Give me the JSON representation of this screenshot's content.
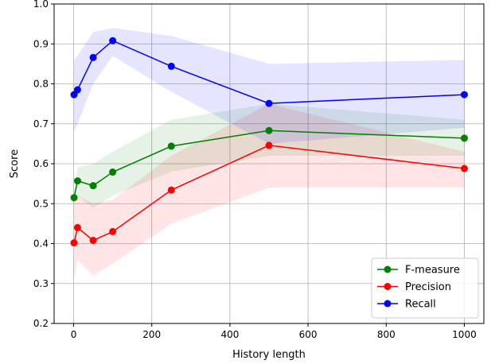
{
  "chart_data": {
    "type": "line",
    "title": "",
    "xlabel": "History length",
    "ylabel": "Score",
    "xlim": [
      -50,
      1050
    ],
    "ylim": [
      0.2,
      1.0
    ],
    "xticks": [
      0,
      200,
      400,
      600,
      800,
      1000
    ],
    "yticks": [
      0.2,
      0.3,
      0.4,
      0.5,
      0.6,
      0.7,
      0.8,
      0.9,
      1.0
    ],
    "grid": true,
    "legend_position": "bottom-right",
    "x": [
      1,
      10,
      50,
      100,
      250,
      500,
      1000
    ],
    "series": [
      {
        "name": "F-measure",
        "color": "#008000",
        "values": [
          0.515,
          0.557,
          0.545,
          0.579,
          0.644,
          0.683,
          0.664
        ],
        "band_low": [
          0.5,
          0.52,
          0.49,
          0.52,
          0.58,
          0.62,
          0.62
        ],
        "band_high": [
          0.53,
          0.59,
          0.6,
          0.63,
          0.71,
          0.75,
          0.71
        ]
      },
      {
        "name": "Precision",
        "color": "#ff0000",
        "values": [
          0.402,
          0.44,
          0.408,
          0.43,
          0.534,
          0.646,
          0.588
        ],
        "band_low": [
          0.31,
          0.36,
          0.32,
          0.35,
          0.45,
          0.54,
          0.54
        ],
        "band_high": [
          0.5,
          0.52,
          0.5,
          0.51,
          0.62,
          0.75,
          0.63
        ]
      },
      {
        "name": "Recall",
        "color": "#0000ff",
        "values": [
          0.773,
          0.785,
          0.866,
          0.908,
          0.844,
          0.751,
          0.773
        ],
        "band_low": [
          0.68,
          0.7,
          0.8,
          0.87,
          0.78,
          0.65,
          0.69
        ],
        "band_high": [
          0.86,
          0.87,
          0.93,
          0.94,
          0.92,
          0.85,
          0.86
        ]
      }
    ]
  }
}
